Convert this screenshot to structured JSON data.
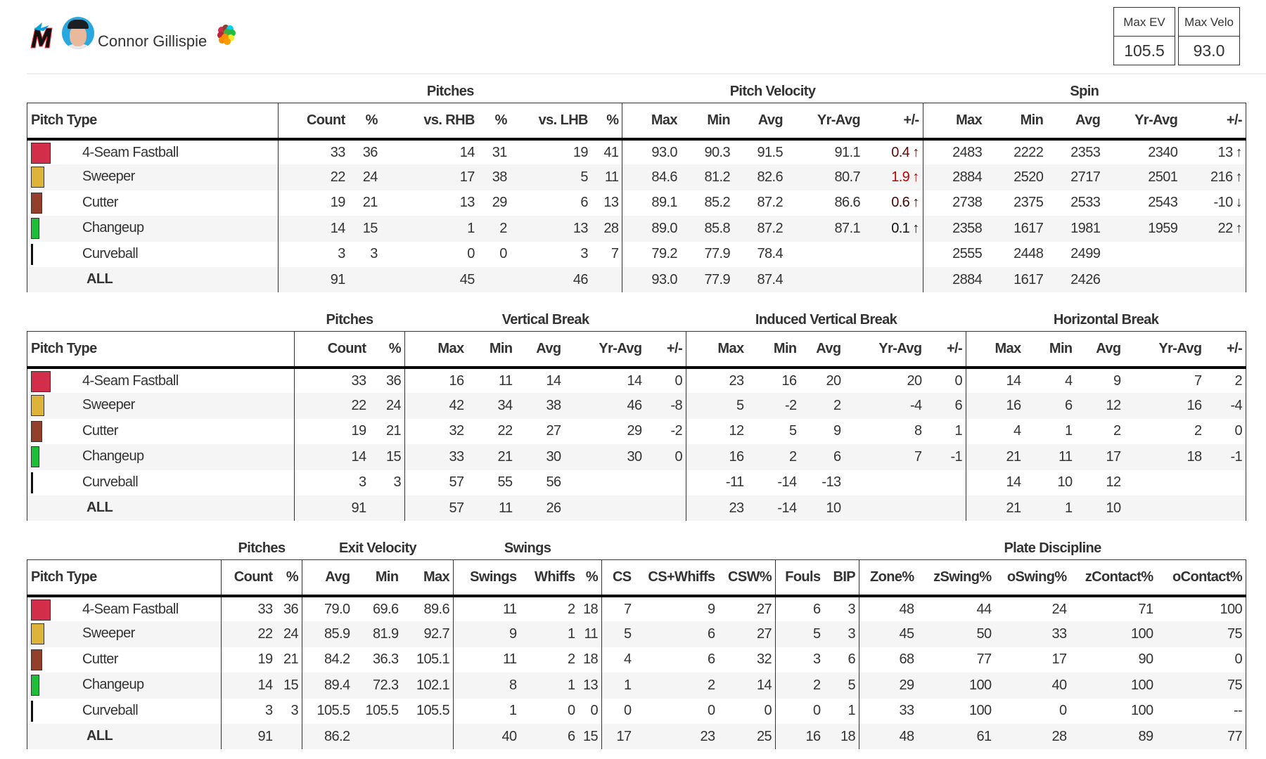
{
  "header": {
    "team_logo": "marlins-logo",
    "player_name": "Connor Gillispie",
    "kpis": [
      {
        "label": "Max EV",
        "value": "105.5"
      },
      {
        "label": "Max Velo",
        "value": "93.0"
      }
    ]
  },
  "pitch_types": [
    {
      "name": "4-Seam Fastball",
      "color": "#d22d49",
      "usage_pct": 36
    },
    {
      "name": "Sweeper",
      "color": "#ddb33a",
      "usage_pct": 24
    },
    {
      "name": "Cutter",
      "color": "#933f2c",
      "usage_pct": 21
    },
    {
      "name": "Changeup",
      "color": "#1dbe3a",
      "usage_pct": 15
    },
    {
      "name": "Curveball",
      "color": "#00d1ed",
      "usage_pct": 3
    }
  ],
  "all_label": "ALL",
  "tables": [
    {
      "groups": [
        {
          "label": "",
          "span": 1
        },
        {
          "label": "Pitches",
          "span": 6
        },
        {
          "label": "Pitch Velocity",
          "span": 5
        },
        {
          "label": "Spin",
          "span": 5
        }
      ],
      "columns": [
        "Pitch Type",
        "Count",
        "%",
        "vs. RHB",
        "%",
        "vs. LHB",
        "%",
        "Max",
        "Min",
        "Avg",
        "Yr-Avg",
        "+/-",
        "Max",
        "Min",
        "Avg",
        "Yr-Avg",
        "+/-"
      ],
      "rows": [
        [
          "33",
          "36",
          "14",
          "31",
          "19",
          "41",
          "93.0",
          "90.3",
          "91.5",
          "91.1",
          {
            "v": "0.4",
            "arrow": "up",
            "color": "#5c0a0a"
          },
          "2483",
          "2222",
          "2353",
          "2340",
          {
            "v": "13",
            "arrow": "up",
            "color": "#333333"
          }
        ],
        [
          "22",
          "24",
          "17",
          "38",
          "5",
          "11",
          "84.6",
          "81.2",
          "82.6",
          "80.7",
          {
            "v": "1.9",
            "arrow": "up",
            "color": "#c00000"
          },
          "2884",
          "2520",
          "2717",
          "2501",
          {
            "v": "216",
            "arrow": "up",
            "color": "#333333"
          }
        ],
        [
          "19",
          "21",
          "13",
          "29",
          "6",
          "13",
          "89.1",
          "85.2",
          "87.2",
          "86.6",
          {
            "v": "0.6",
            "arrow": "up",
            "color": "#4a0505"
          },
          "2738",
          "2375",
          "2533",
          "2543",
          {
            "v": "-10",
            "arrow": "down",
            "color": "#333333"
          }
        ],
        [
          "14",
          "15",
          "1",
          "2",
          "13",
          "28",
          "89.0",
          "85.8",
          "87.2",
          "87.1",
          {
            "v": "0.1",
            "arrow": "up",
            "color": "#111111"
          },
          "2358",
          "1617",
          "1981",
          "1959",
          {
            "v": "22",
            "arrow": "up",
            "color": "#333333"
          }
        ],
        [
          "3",
          "3",
          "0",
          "0",
          "3",
          "7",
          "79.2",
          "77.9",
          "78.4",
          "",
          "",
          "2555",
          "2448",
          "2499",
          "",
          ""
        ],
        [
          "91",
          "",
          "45",
          "",
          "46",
          "",
          "93.0",
          "77.9",
          "87.4",
          "",
          "",
          "2884",
          "1617",
          "2426",
          "",
          ""
        ]
      ]
    },
    {
      "groups": [
        {
          "label": "",
          "span": 1
        },
        {
          "label": "Pitches",
          "span": 2
        },
        {
          "label": "Vertical Break",
          "span": 5
        },
        {
          "label": "Induced Vertical Break",
          "span": 5
        },
        {
          "label": "Horizontal Break",
          "span": 5
        }
      ],
      "columns": [
        "Pitch Type",
        "Count",
        "%",
        "Max",
        "Min",
        "Avg",
        "Yr-Avg",
        "+/-",
        "Max",
        "Min",
        "Avg",
        "Yr-Avg",
        "+/-",
        "Max",
        "Min",
        "Avg",
        "Yr-Avg",
        "+/-"
      ],
      "rows": [
        [
          "33",
          "36",
          "16",
          "11",
          "14",
          "14",
          "0",
          "23",
          "16",
          "20",
          "20",
          "0",
          "14",
          "4",
          "9",
          "7",
          "2"
        ],
        [
          "22",
          "24",
          "42",
          "34",
          "38",
          "46",
          "-8",
          "5",
          "-2",
          "2",
          "-4",
          "6",
          "16",
          "6",
          "12",
          "16",
          "-4"
        ],
        [
          "19",
          "21",
          "32",
          "22",
          "27",
          "29",
          "-2",
          "12",
          "5",
          "9",
          "8",
          "1",
          "4",
          "1",
          "2",
          "2",
          "0"
        ],
        [
          "14",
          "15",
          "33",
          "21",
          "30",
          "30",
          "0",
          "16",
          "2",
          "6",
          "7",
          "-1",
          "21",
          "11",
          "17",
          "18",
          "-1"
        ],
        [
          "3",
          "3",
          "57",
          "55",
          "56",
          "",
          "",
          "-11",
          "-14",
          "-13",
          "",
          "",
          "14",
          "10",
          "12",
          "",
          ""
        ],
        [
          "91",
          "",
          "57",
          "11",
          "26",
          "",
          "",
          "23",
          "-14",
          "10",
          "",
          "",
          "21",
          "1",
          "10",
          "",
          ""
        ]
      ]
    },
    {
      "groups": [
        {
          "label": "",
          "span": 1
        },
        {
          "label": "Pitches",
          "span": 2
        },
        {
          "label": "Exit Velocity",
          "span": 3
        },
        {
          "label": "Swings",
          "span": 3
        },
        {
          "label": "",
          "span": 3
        },
        {
          "label": "",
          "span": 2
        },
        {
          "label": "Plate Discipline",
          "span": 5
        }
      ],
      "columns": [
        "Pitch Type",
        "Count",
        "%",
        "Avg",
        "Min",
        "Max",
        "Swings",
        "Whiffs",
        "%",
        "CS",
        "CS+Whiffs",
        "CSW%",
        "Fouls",
        "BIP",
        "Zone%",
        "zSwing%",
        "oSwing%",
        "zContact%",
        "oContact%"
      ],
      "rows": [
        [
          "33",
          "36",
          "79.0",
          "69.6",
          "89.6",
          "11",
          "2",
          "18",
          "7",
          "9",
          "27",
          "6",
          "3",
          "48",
          "44",
          "24",
          "71",
          "100"
        ],
        [
          "22",
          "24",
          "85.9",
          "81.9",
          "92.7",
          "9",
          "1",
          "11",
          "5",
          "6",
          "27",
          "5",
          "3",
          "45",
          "50",
          "33",
          "100",
          "75"
        ],
        [
          "19",
          "21",
          "84.2",
          "36.3",
          "105.1",
          "11",
          "2",
          "18",
          "4",
          "6",
          "32",
          "3",
          "6",
          "68",
          "77",
          "17",
          "90",
          "0"
        ],
        [
          "14",
          "15",
          "89.4",
          "72.3",
          "102.1",
          "8",
          "1",
          "13",
          "1",
          "2",
          "14",
          "2",
          "5",
          "29",
          "100",
          "40",
          "100",
          "75"
        ],
        [
          "3",
          "3",
          "105.5",
          "105.5",
          "105.5",
          "1",
          "0",
          "0",
          "0",
          "0",
          "0",
          "0",
          "1",
          "33",
          "100",
          "0",
          "100",
          "--"
        ],
        [
          "91",
          "",
          "86.2",
          "",
          "",
          "40",
          "6",
          "15",
          "17",
          "23",
          "25",
          "16",
          "18",
          "48",
          "61",
          "28",
          "89",
          "77"
        ]
      ]
    }
  ]
}
